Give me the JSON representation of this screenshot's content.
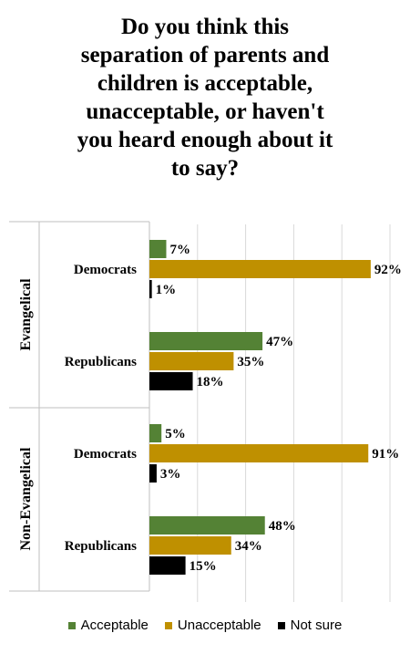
{
  "title_lines": [
    "Do you think this",
    "separation of parents and",
    "children is acceptable,",
    "unacceptable, or haven't",
    "you heard enough about it",
    "to say?"
  ],
  "chart_data": {
    "type": "bar",
    "orientation": "horizontal",
    "title": "Do you think this separation of parents and children is acceptable, unacceptable, or haven't you heard enough about it to say?",
    "groups": [
      {
        "name": "Evangelical",
        "categories": [
          "Democrats",
          "Republicans"
        ]
      },
      {
        "name": "Non-Evangelical",
        "categories": [
          "Democrats",
          "Republicans"
        ]
      }
    ],
    "series": [
      {
        "name": "Acceptable",
        "color": "#548235",
        "values": [
          7,
          47,
          5,
          48
        ]
      },
      {
        "name": "Unacceptable",
        "color": "#BF9000",
        "values": [
          92,
          35,
          91,
          34
        ]
      },
      {
        "name": "Not sure",
        "color": "#000000",
        "values": [
          1,
          18,
          3,
          15
        ]
      }
    ],
    "value_suffix": "%",
    "xlim": [
      0,
      100
    ],
    "grid": true,
    "legend_position": "bottom"
  },
  "colors": {
    "acceptable": "#548235",
    "unacceptable": "#BF9000",
    "not_sure": "#000000",
    "grid": "#d9d9d9"
  }
}
